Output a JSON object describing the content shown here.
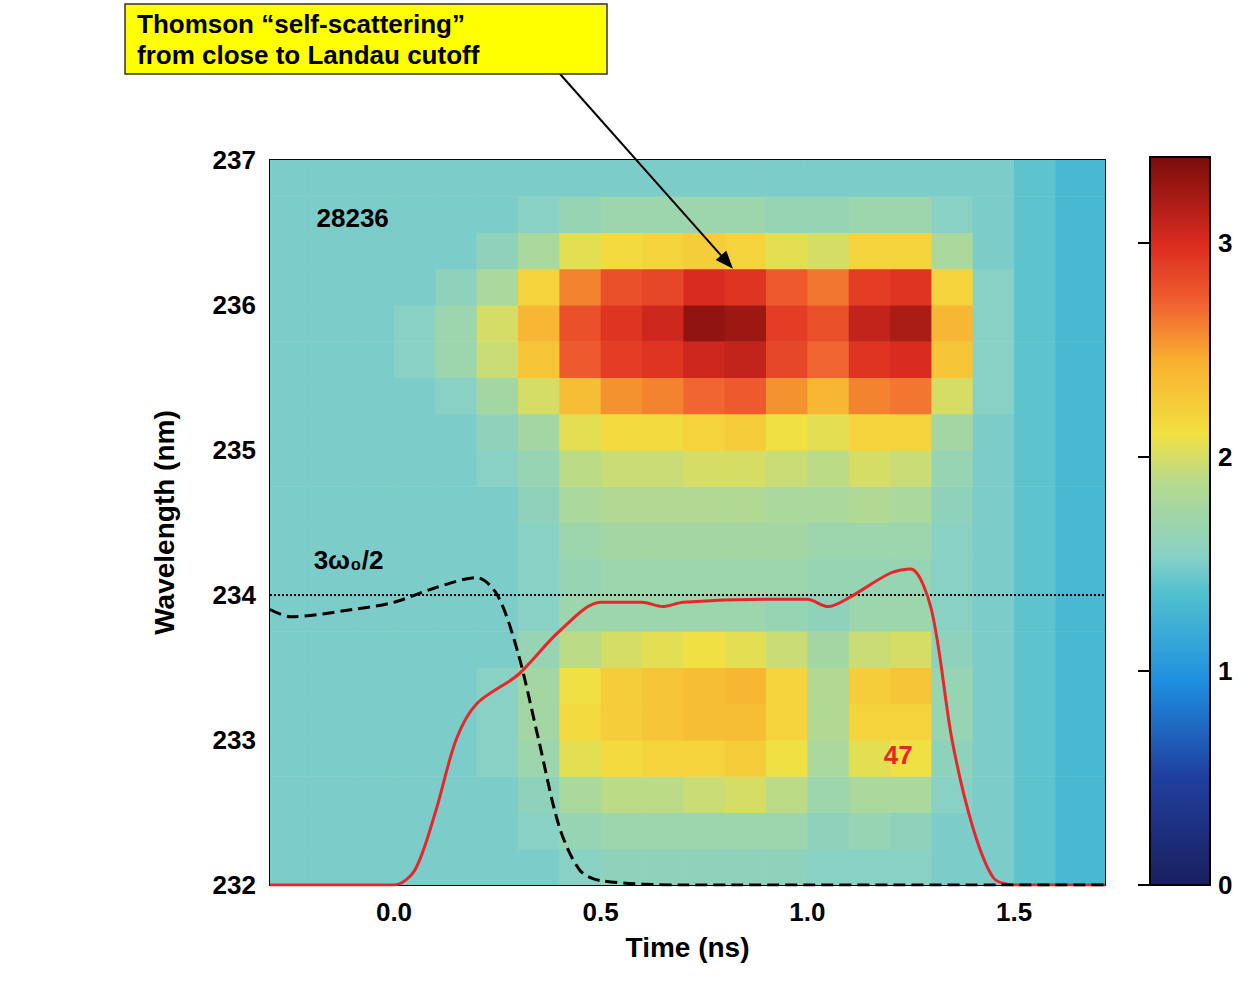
{
  "chart_data": {
    "type": "heatmap",
    "x_label": "Time (ns)",
    "y_label": "Wavelength (nm)",
    "xlim": [
      -0.3,
      1.72
    ],
    "xticks": [
      {
        "value": 0,
        "label": "0.0"
      },
      {
        "value": 0.5,
        "label": "0.5"
      },
      {
        "value": 1,
        "label": "1.0"
      },
      {
        "value": 1.5,
        "label": "1.5"
      }
    ],
    "ylim": [
      232,
      237
    ],
    "yticks": [
      232,
      233,
      234,
      235,
      236,
      237
    ],
    "grid": false,
    "heatmap": {
      "x_bins": [
        -0.3,
        -0.2,
        -0.1,
        0,
        0.1,
        0.2,
        0.3,
        0.4,
        0.5,
        0.6,
        0.7,
        0.8,
        0.9,
        1.0,
        1.1,
        1.2,
        1.3,
        1.4,
        1.5,
        1.6,
        1.72
      ],
      "y_bins": [
        232,
        232.25,
        232.5,
        232.75,
        233,
        233.25,
        233.5,
        233.75,
        234,
        234.25,
        234.5,
        234.75,
        235,
        235.25,
        235.5,
        235.75,
        236,
        236.25,
        236.5,
        236.75,
        237
      ],
      "values": [
        [
          1.5,
          1.5,
          1.5,
          1.5,
          1.5,
          1.5,
          1.5,
          1.55,
          1.6,
          1.6,
          1.6,
          1.6,
          1.6,
          1.55,
          1.55,
          1.55,
          1.5,
          1.5,
          1.4,
          1.3
        ],
        [
          1.5,
          1.5,
          1.5,
          1.5,
          1.5,
          1.5,
          1.55,
          1.65,
          1.7,
          1.7,
          1.7,
          1.7,
          1.7,
          1.6,
          1.65,
          1.6,
          1.5,
          1.5,
          1.4,
          1.3
        ],
        [
          1.5,
          1.5,
          1.5,
          1.5,
          1.5,
          1.5,
          1.6,
          1.8,
          1.9,
          1.9,
          1.95,
          2.0,
          1.9,
          1.7,
          1.8,
          1.8,
          1.55,
          1.5,
          1.4,
          1.3
        ],
        [
          1.5,
          1.5,
          1.5,
          1.5,
          1.5,
          1.55,
          1.7,
          2.05,
          2.15,
          2.2,
          2.2,
          2.25,
          2.1,
          1.8,
          2.05,
          2.1,
          1.6,
          1.5,
          1.4,
          1.3
        ],
        [
          1.5,
          1.5,
          1.5,
          1.5,
          1.5,
          1.55,
          1.75,
          2.15,
          2.25,
          2.3,
          2.35,
          2.35,
          2.2,
          1.85,
          2.2,
          2.2,
          1.65,
          1.5,
          1.4,
          1.3
        ],
        [
          1.5,
          1.5,
          1.5,
          1.5,
          1.5,
          1.55,
          1.75,
          2.1,
          2.25,
          2.3,
          2.35,
          2.4,
          2.2,
          1.85,
          2.25,
          2.3,
          1.65,
          1.5,
          1.4,
          1.3
        ],
        [
          1.5,
          1.5,
          1.5,
          1.5,
          1.5,
          1.5,
          1.65,
          1.9,
          2.0,
          2.05,
          2.1,
          2.05,
          1.95,
          1.75,
          1.95,
          2.0,
          1.6,
          1.5,
          1.4,
          1.3
        ],
        [
          1.5,
          1.5,
          1.5,
          1.5,
          1.5,
          1.5,
          1.55,
          1.7,
          1.7,
          1.7,
          1.7,
          1.7,
          1.65,
          1.6,
          1.7,
          1.7,
          1.55,
          1.5,
          1.4,
          1.3
        ],
        [
          1.5,
          1.5,
          1.5,
          1.5,
          1.5,
          1.5,
          1.55,
          1.65,
          1.7,
          1.7,
          1.7,
          1.7,
          1.7,
          1.65,
          1.65,
          1.65,
          1.55,
          1.5,
          1.4,
          1.3
        ],
        [
          1.5,
          1.5,
          1.5,
          1.5,
          1.5,
          1.5,
          1.55,
          1.7,
          1.75,
          1.75,
          1.75,
          1.75,
          1.75,
          1.7,
          1.7,
          1.7,
          1.55,
          1.5,
          1.4,
          1.3
        ],
        [
          1.5,
          1.5,
          1.5,
          1.5,
          1.5,
          1.5,
          1.6,
          1.8,
          1.85,
          1.85,
          1.85,
          1.85,
          1.8,
          1.8,
          1.85,
          1.8,
          1.6,
          1.5,
          1.4,
          1.3
        ],
        [
          1.5,
          1.5,
          1.5,
          1.5,
          1.5,
          1.55,
          1.65,
          1.9,
          1.95,
          1.95,
          2.0,
          2.0,
          1.95,
          1.9,
          2.0,
          1.95,
          1.65,
          1.5,
          1.4,
          1.3
        ],
        [
          1.5,
          1.5,
          1.5,
          1.5,
          1.5,
          1.6,
          1.75,
          2.05,
          2.15,
          2.15,
          2.2,
          2.25,
          2.1,
          2.05,
          2.2,
          2.2,
          1.75,
          1.5,
          1.4,
          1.3
        ],
        [
          1.5,
          1.5,
          1.5,
          1.5,
          1.55,
          1.75,
          2.0,
          2.35,
          2.55,
          2.6,
          2.7,
          2.75,
          2.55,
          2.4,
          2.6,
          2.65,
          2.0,
          1.55,
          1.4,
          1.3
        ],
        [
          1.5,
          1.5,
          1.5,
          1.55,
          1.7,
          1.95,
          2.3,
          2.75,
          2.9,
          2.95,
          3.05,
          3.1,
          2.85,
          2.7,
          2.95,
          3.0,
          2.3,
          1.55,
          1.4,
          1.3
        ],
        [
          1.5,
          1.5,
          1.5,
          1.55,
          1.7,
          2.0,
          2.4,
          2.8,
          2.95,
          3.05,
          3.3,
          3.25,
          2.9,
          2.8,
          3.1,
          3.2,
          2.4,
          1.55,
          1.4,
          1.3
        ],
        [
          1.5,
          1.5,
          1.5,
          1.5,
          1.6,
          1.8,
          2.2,
          2.6,
          2.8,
          2.85,
          3.0,
          2.95,
          2.75,
          2.65,
          2.9,
          2.95,
          2.2,
          1.55,
          1.4,
          1.3
        ],
        [
          1.5,
          1.5,
          1.5,
          1.5,
          1.5,
          1.6,
          1.8,
          2.05,
          2.15,
          2.2,
          2.25,
          2.2,
          2.05,
          2.0,
          2.2,
          2.2,
          1.8,
          1.5,
          1.4,
          1.3
        ],
        [
          1.5,
          1.5,
          1.5,
          1.5,
          1.5,
          1.5,
          1.55,
          1.65,
          1.7,
          1.7,
          1.7,
          1.7,
          1.65,
          1.65,
          1.7,
          1.7,
          1.55,
          1.5,
          1.4,
          1.3
        ],
        [
          1.5,
          1.5,
          1.5,
          1.5,
          1.5,
          1.5,
          1.5,
          1.5,
          1.5,
          1.5,
          1.5,
          1.5,
          1.5,
          1.5,
          1.5,
          1.5,
          1.5,
          1.5,
          1.4,
          1.3
        ]
      ],
      "colorbar_range": [
        0,
        3.4
      ],
      "colorbar_ticks": [
        0,
        1,
        2,
        3
      ]
    },
    "series": [
      {
        "name": "47",
        "type": "line",
        "color": "#e8262a",
        "line_style": "solid",
        "x": [
          -0.3,
          0.0,
          0.05,
          0.1,
          0.15,
          0.2,
          0.3,
          0.4,
          0.5,
          0.6,
          0.65,
          0.7,
          0.9,
          1.0,
          1.05,
          1.1,
          1.2,
          1.25,
          1.3,
          1.35,
          1.4,
          1.45,
          1.5,
          1.72
        ],
        "values": [
          232,
          232,
          232.1,
          232.5,
          233.0,
          233.25,
          233.45,
          233.75,
          233.95,
          233.95,
          233.92,
          233.95,
          233.97,
          233.97,
          233.92,
          233.98,
          234.15,
          234.18,
          233.9,
          233.0,
          232.4,
          232.05,
          232,
          232
        ]
      },
      {
        "type": "line",
        "color": "#000000",
        "line_style": "dashed",
        "x": [
          -0.3,
          -0.25,
          -0.1,
          0.0,
          0.1,
          0.2,
          0.25,
          0.3,
          0.35,
          0.4,
          0.45,
          0.5,
          0.7,
          1.72
        ],
        "values": [
          233.9,
          233.85,
          233.9,
          233.95,
          234.05,
          234.12,
          234.0,
          233.6,
          233.0,
          232.4,
          232.1,
          232.03,
          232.0,
          232.0
        ]
      }
    ],
    "reference_lines": [
      {
        "y": 234,
        "label": "3ω₀/2",
        "line_style": "dotted",
        "x": -0.11,
        "label_y": 234.24
      }
    ],
    "annotations": [
      {
        "text": "28236",
        "x": -0.1,
        "y": 236.6
      },
      {
        "text": "47",
        "x": 1.22,
        "y": 232.9,
        "color": "#e8262a"
      },
      {
        "text": "Thomson “self-scattering”\nfrom close to Landau cutoff",
        "target": [
          0.82,
          236.25
        ]
      }
    ]
  }
}
